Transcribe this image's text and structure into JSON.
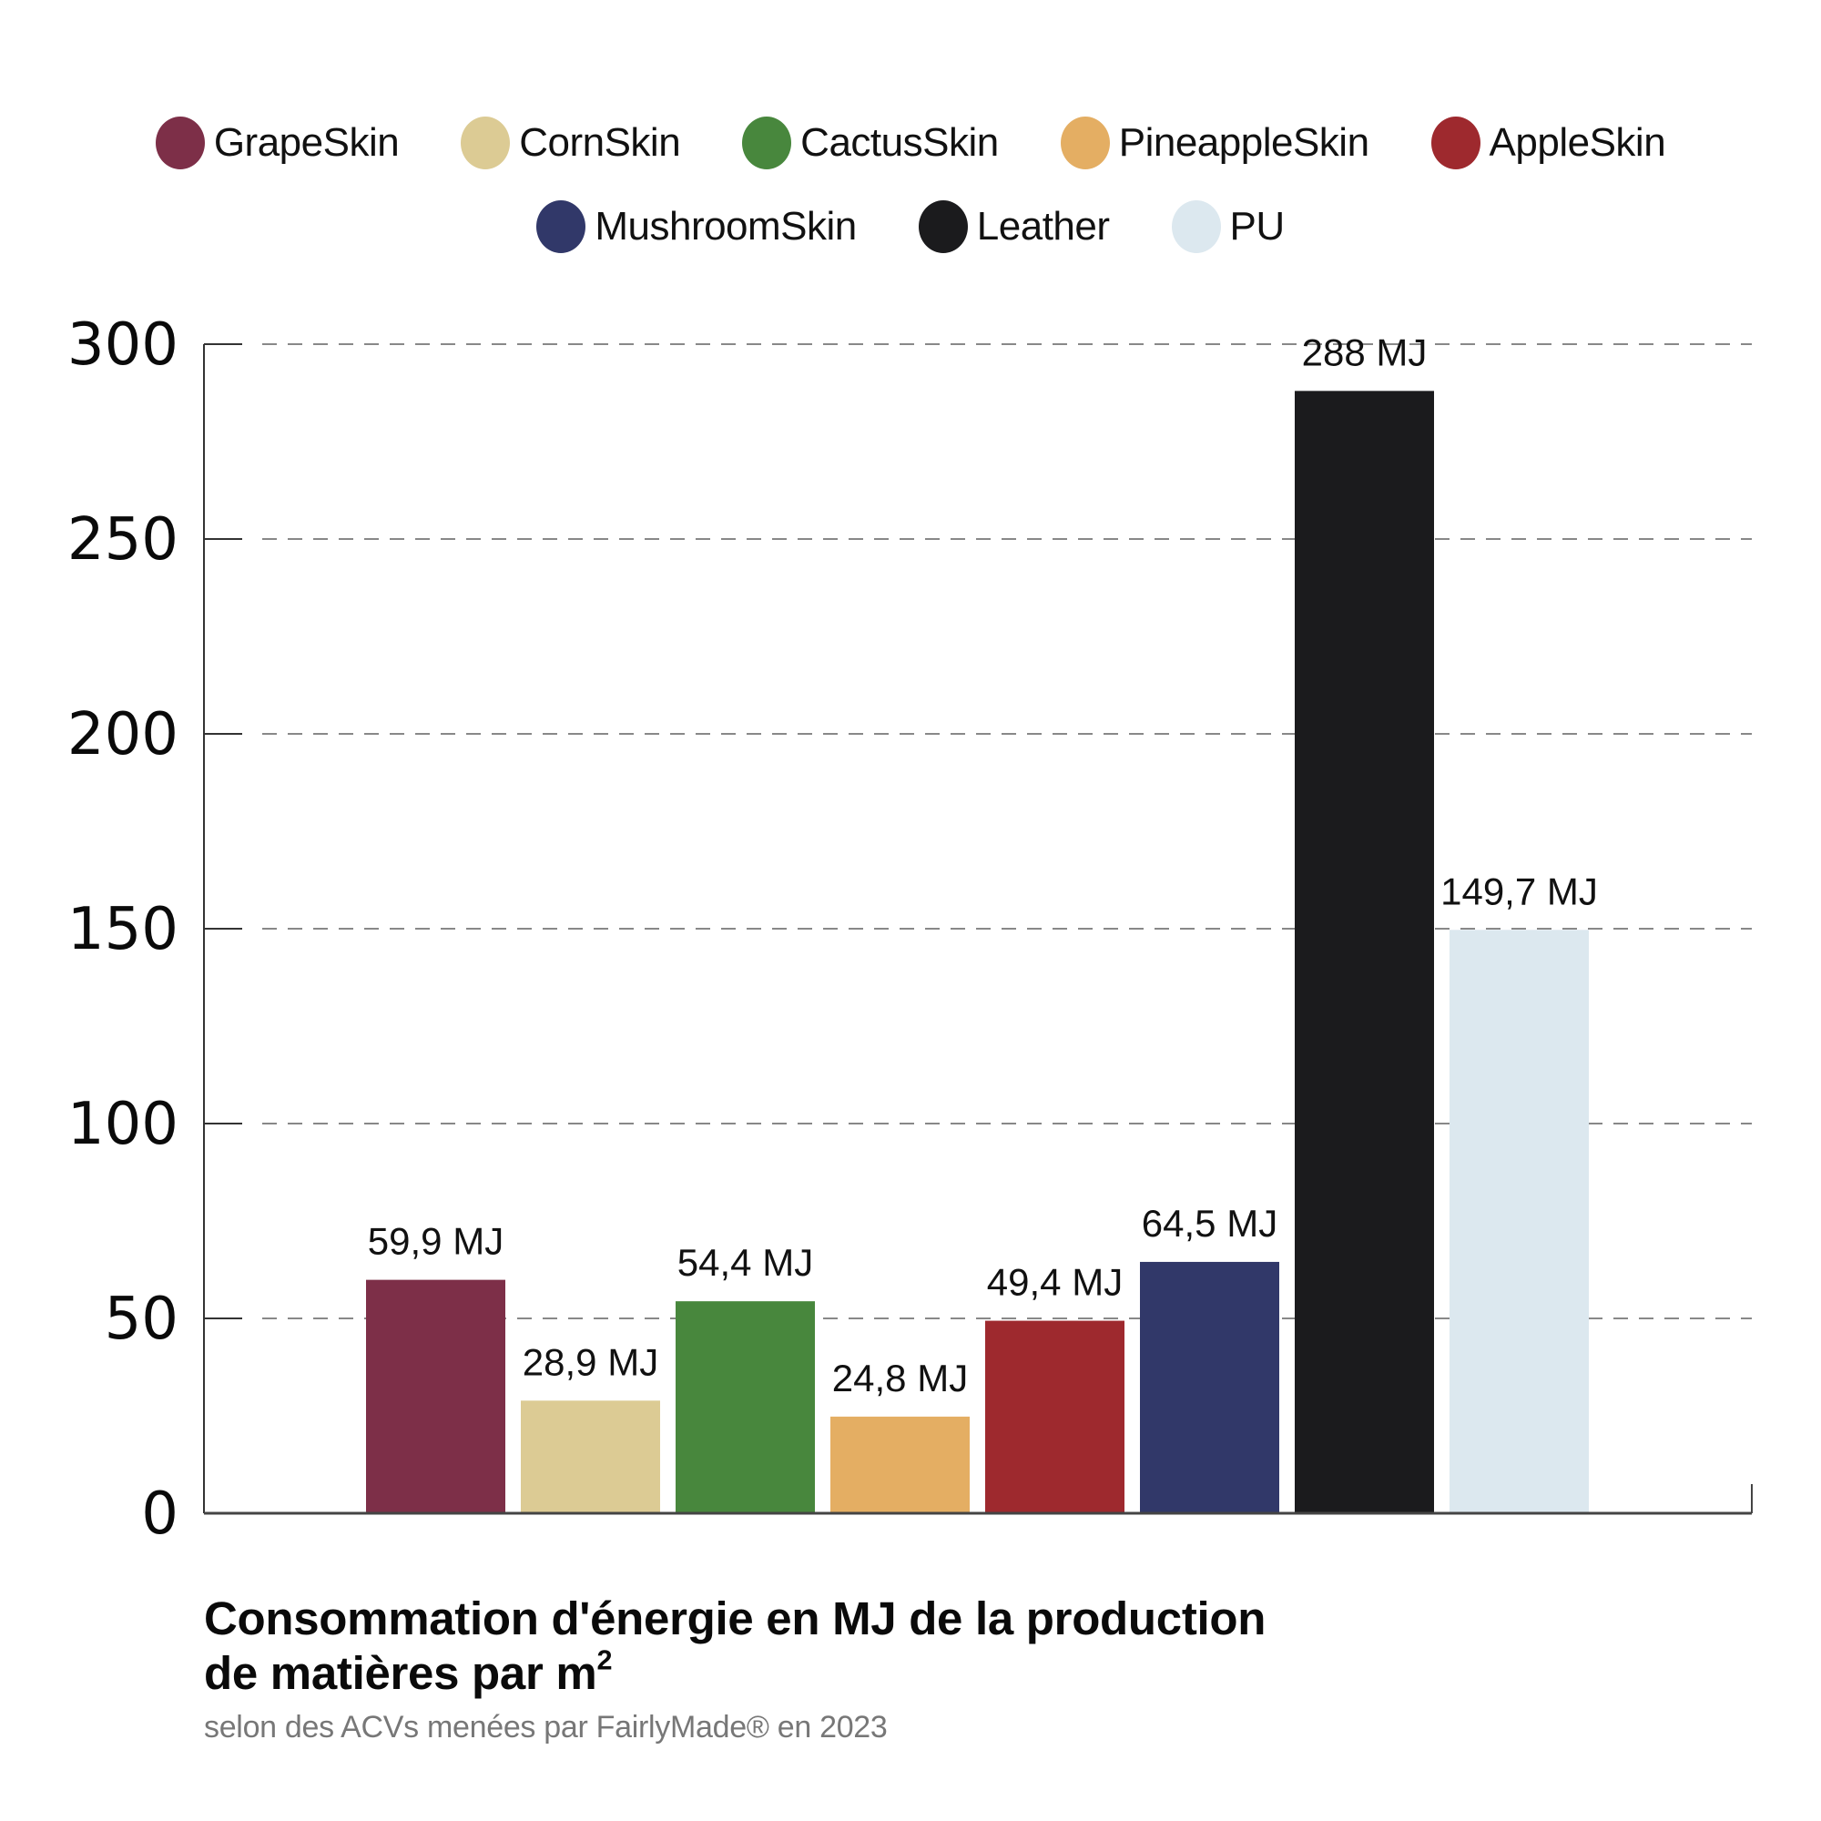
{
  "chart_data": {
    "type": "bar",
    "title": "Consommation d'énergie en MJ de la production de matières par m²",
    "title_line1": "Consommation d'énergie en MJ de la production",
    "title_line2": "de matières par m",
    "title_sup": "2",
    "subtitle": "selon des ACVs menées par FairlyMade® en 2023",
    "xlabel": "",
    "ylabel": "",
    "ylim": [
      0,
      300
    ],
    "yticks": [
      0,
      50,
      100,
      150,
      200,
      250,
      300
    ],
    "grid": true,
    "legend_position": "top-center",
    "unit": "MJ",
    "categories": [
      "GrapeSkin",
      "CornSkin",
      "CactusSkin",
      "PineappleSkin",
      "AppleSkin",
      "MushroomSkin",
      "Leather",
      "PU"
    ],
    "values": [
      59.9,
      28.9,
      54.4,
      24.8,
      49.4,
      64.5,
      288,
      149.7
    ],
    "value_labels": [
      "59,9 MJ",
      "28,9 MJ",
      "54,4 MJ",
      "24,8 MJ",
      "49,4 MJ",
      "64,5 MJ",
      "288 MJ",
      "149,7 MJ"
    ],
    "colors": [
      "#7d2f48",
      "#dccb94",
      "#48873d",
      "#e4ae63",
      "#9e292e",
      "#313869",
      "#1b1b1d",
      "#dce8ef"
    ]
  },
  "legend": {
    "row1": [
      {
        "label": "GrapeSkin",
        "color": "#7d2f48"
      },
      {
        "label": "CornSkin",
        "color": "#dccb94"
      },
      {
        "label": "CactusSkin",
        "color": "#48873d"
      },
      {
        "label": "PineappleSkin",
        "color": "#e4ae63"
      },
      {
        "label": "AppleSkin",
        "color": "#9e292e"
      }
    ],
    "row2": [
      {
        "label": "MushroomSkin",
        "color": "#313869"
      },
      {
        "label": "Leather",
        "color": "#1b1b1d"
      },
      {
        "label": "PU",
        "color": "#dce8ef"
      }
    ]
  }
}
